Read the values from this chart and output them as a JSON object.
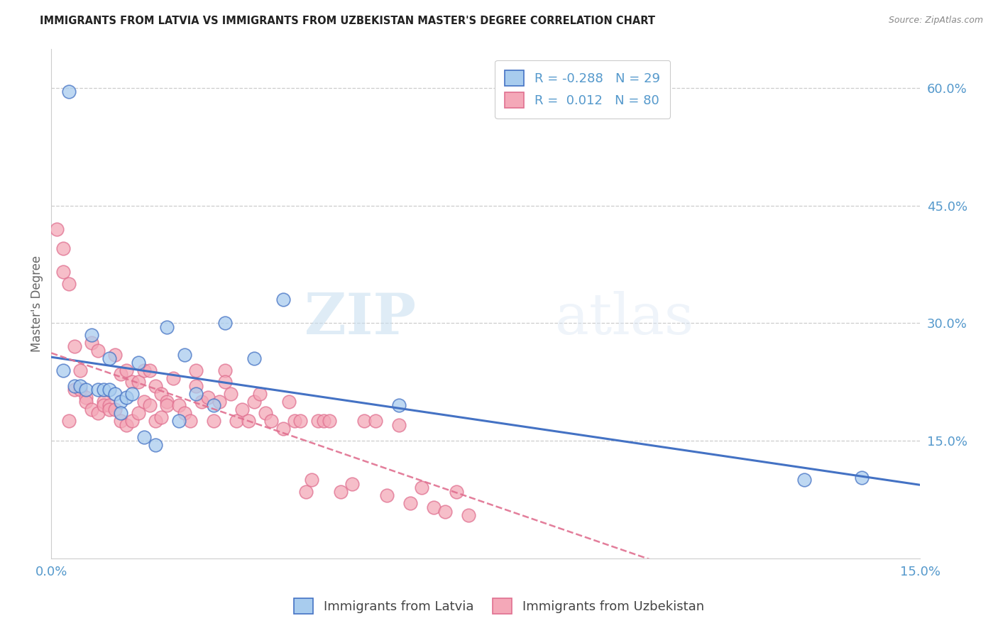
{
  "title": "IMMIGRANTS FROM LATVIA VS IMMIGRANTS FROM UZBEKISTAN MASTER'S DEGREE CORRELATION CHART",
  "source": "Source: ZipAtlas.com",
  "ylabel": "Master's Degree",
  "right_yticks": [
    "60.0%",
    "45.0%",
    "30.0%",
    "15.0%"
  ],
  "right_ytick_vals": [
    0.6,
    0.45,
    0.3,
    0.15
  ],
  "xlim": [
    0.0,
    0.15
  ],
  "ylim": [
    0.0,
    0.65
  ],
  "legend_r_latvia": "-0.288",
  "legend_n_latvia": "29",
  "legend_r_uzbekistan": "0.012",
  "legend_n_uzbekistan": "80",
  "blue_color": "#A8CCEE",
  "pink_color": "#F4A8B8",
  "blue_line_color": "#4472C4",
  "pink_line_color": "#E07090",
  "watermark_zip": "ZIP",
  "watermark_atlas": "atlas",
  "latvia_x": [
    0.002,
    0.003,
    0.004,
    0.005,
    0.006,
    0.007,
    0.008,
    0.009,
    0.01,
    0.011,
    0.012,
    0.013,
    0.014,
    0.015,
    0.016,
    0.018,
    0.02,
    0.023,
    0.025,
    0.028,
    0.03,
    0.035,
    0.04,
    0.06,
    0.13,
    0.14,
    0.01,
    0.012,
    0.022
  ],
  "latvia_y": [
    0.24,
    0.595,
    0.22,
    0.22,
    0.215,
    0.285,
    0.215,
    0.215,
    0.215,
    0.21,
    0.2,
    0.205,
    0.21,
    0.25,
    0.155,
    0.145,
    0.295,
    0.26,
    0.21,
    0.195,
    0.3,
    0.255,
    0.33,
    0.195,
    0.1,
    0.103,
    0.255,
    0.185,
    0.175
  ],
  "uzbekistan_x": [
    0.001,
    0.002,
    0.002,
    0.003,
    0.003,
    0.004,
    0.004,
    0.005,
    0.005,
    0.006,
    0.006,
    0.007,
    0.007,
    0.008,
    0.008,
    0.009,
    0.009,
    0.01,
    0.01,
    0.011,
    0.011,
    0.012,
    0.012,
    0.013,
    0.013,
    0.014,
    0.014,
    0.015,
    0.015,
    0.016,
    0.016,
    0.017,
    0.017,
    0.018,
    0.018,
    0.019,
    0.019,
    0.02,
    0.02,
    0.021,
    0.022,
    0.023,
    0.024,
    0.025,
    0.025,
    0.026,
    0.027,
    0.028,
    0.029,
    0.03,
    0.03,
    0.031,
    0.032,
    0.033,
    0.034,
    0.035,
    0.036,
    0.037,
    0.038,
    0.04,
    0.041,
    0.042,
    0.043,
    0.044,
    0.045,
    0.046,
    0.047,
    0.048,
    0.05,
    0.052,
    0.054,
    0.056,
    0.058,
    0.06,
    0.062,
    0.064,
    0.066,
    0.068,
    0.07,
    0.072
  ],
  "uzbekistan_y": [
    0.42,
    0.395,
    0.365,
    0.35,
    0.175,
    0.27,
    0.215,
    0.24,
    0.215,
    0.205,
    0.2,
    0.275,
    0.19,
    0.265,
    0.185,
    0.2,
    0.195,
    0.195,
    0.19,
    0.26,
    0.19,
    0.175,
    0.235,
    0.17,
    0.24,
    0.225,
    0.175,
    0.185,
    0.225,
    0.2,
    0.24,
    0.195,
    0.24,
    0.22,
    0.175,
    0.21,
    0.18,
    0.2,
    0.195,
    0.23,
    0.195,
    0.185,
    0.175,
    0.24,
    0.22,
    0.2,
    0.205,
    0.175,
    0.2,
    0.24,
    0.225,
    0.21,
    0.175,
    0.19,
    0.175,
    0.2,
    0.21,
    0.185,
    0.175,
    0.165,
    0.2,
    0.175,
    0.175,
    0.085,
    0.1,
    0.175,
    0.175,
    0.175,
    0.085,
    0.095,
    0.175,
    0.175,
    0.08,
    0.17,
    0.07,
    0.09,
    0.065,
    0.06,
    0.085,
    0.055
  ]
}
